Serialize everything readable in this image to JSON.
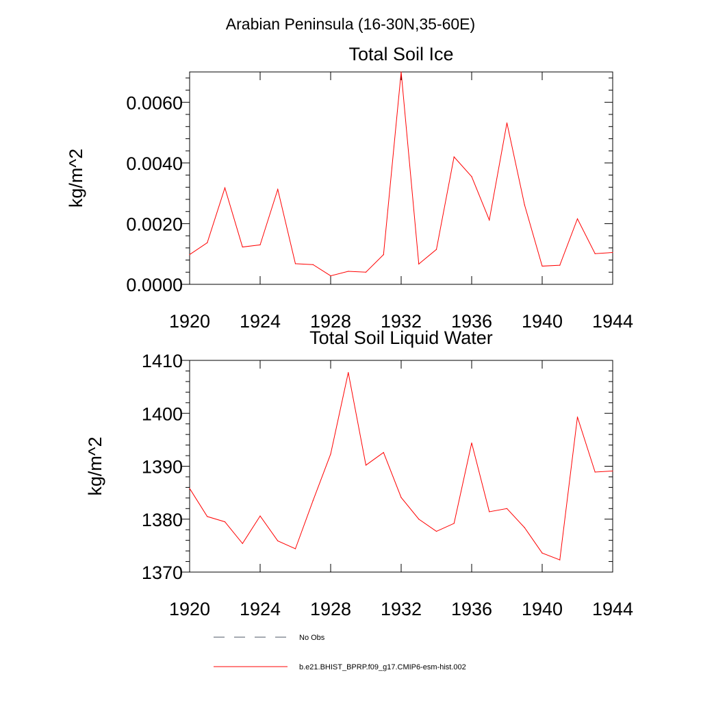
{
  "figure": {
    "suptitle": "Arabian Peninsula (16-30N,35-60E)"
  },
  "legend": {
    "position": "bottom",
    "items": [
      {
        "label": "No Obs",
        "style": "dashed",
        "color": "#4b5563"
      },
      {
        "label": "b.e21.BHIST_BPRP.f09_g17.CMIP6-esm-hist.002",
        "style": "solid",
        "color": "#ff0000"
      }
    ]
  },
  "chart_data": [
    {
      "type": "line",
      "title": "Total Soil Ice",
      "xlabel": "",
      "ylabel": "kg/m^2",
      "xlim": [
        1920,
        1944
      ],
      "ylim": [
        0.0,
        0.007
      ],
      "xticks": [
        1920,
        1924,
        1928,
        1932,
        1936,
        1940,
        1944
      ],
      "xtick_labels": [
        "1920",
        "1924",
        "1928",
        "1932",
        "1936",
        "1940",
        "1944"
      ],
      "yticks": [
        0.0,
        0.002,
        0.004,
        0.006
      ],
      "ytick_labels": [
        "0.0000",
        "0.0020",
        "0.0040",
        "0.0060"
      ],
      "grid": false,
      "x": [
        1920,
        1921,
        1922,
        1923,
        1924,
        1925,
        1926,
        1927,
        1928,
        1929,
        1930,
        1931,
        1932,
        1933,
        1934,
        1935,
        1936,
        1937,
        1938,
        1939,
        1940,
        1941,
        1942,
        1943,
        1944
      ],
      "series": [
        {
          "name": "b.e21.BHIST_BPRP.f09_g17.CMIP6-esm-hist.002",
          "color": "#ff0000",
          "values": [
            0.00098,
            0.00137,
            0.00318,
            0.00123,
            0.0013,
            0.00313,
            0.00068,
            0.00065,
            0.00028,
            0.00043,
            0.0004,
            0.00098,
            0.007,
            0.00067,
            0.00115,
            0.0042,
            0.00355,
            0.00212,
            0.00532,
            0.00262,
            0.0006,
            0.00063,
            0.00216,
            0.00101,
            0.00105
          ]
        }
      ]
    },
    {
      "type": "line",
      "title": "Total Soil Liquid Water",
      "xlabel": "",
      "ylabel": "kg/m^2",
      "xlim": [
        1920,
        1944
      ],
      "ylim": [
        1370,
        1410
      ],
      "xticks": [
        1920,
        1924,
        1928,
        1932,
        1936,
        1940,
        1944
      ],
      "xtick_labels": [
        "1920",
        "1924",
        "1928",
        "1932",
        "1936",
        "1940",
        "1944"
      ],
      "yticks": [
        1370,
        1380,
        1390,
        1400,
        1410
      ],
      "ytick_labels": [
        "1370",
        "1380",
        "1390",
        "1400",
        "1410"
      ],
      "grid": false,
      "x": [
        1920,
        1921,
        1922,
        1923,
        1924,
        1925,
        1926,
        1927,
        1928,
        1929,
        1930,
        1931,
        1932,
        1933,
        1934,
        1935,
        1936,
        1937,
        1938,
        1939,
        1940,
        1941,
        1942,
        1943,
        1944
      ],
      "series": [
        {
          "name": "b.e21.BHIST_BPRP.f09_g17.CMIP6-esm-hist.002",
          "color": "#ff0000",
          "values": [
            1385.8,
            1380.5,
            1379.5,
            1375.4,
            1380.6,
            1375.9,
            1374.4,
            1383.5,
            1392.3,
            1407.7,
            1390.2,
            1392.6,
            1384.1,
            1380.0,
            1377.7,
            1379.2,
            1394.4,
            1381.4,
            1382.0,
            1378.4,
            1373.6,
            1372.3,
            1399.3,
            1388.9,
            1389.1
          ]
        }
      ]
    }
  ]
}
